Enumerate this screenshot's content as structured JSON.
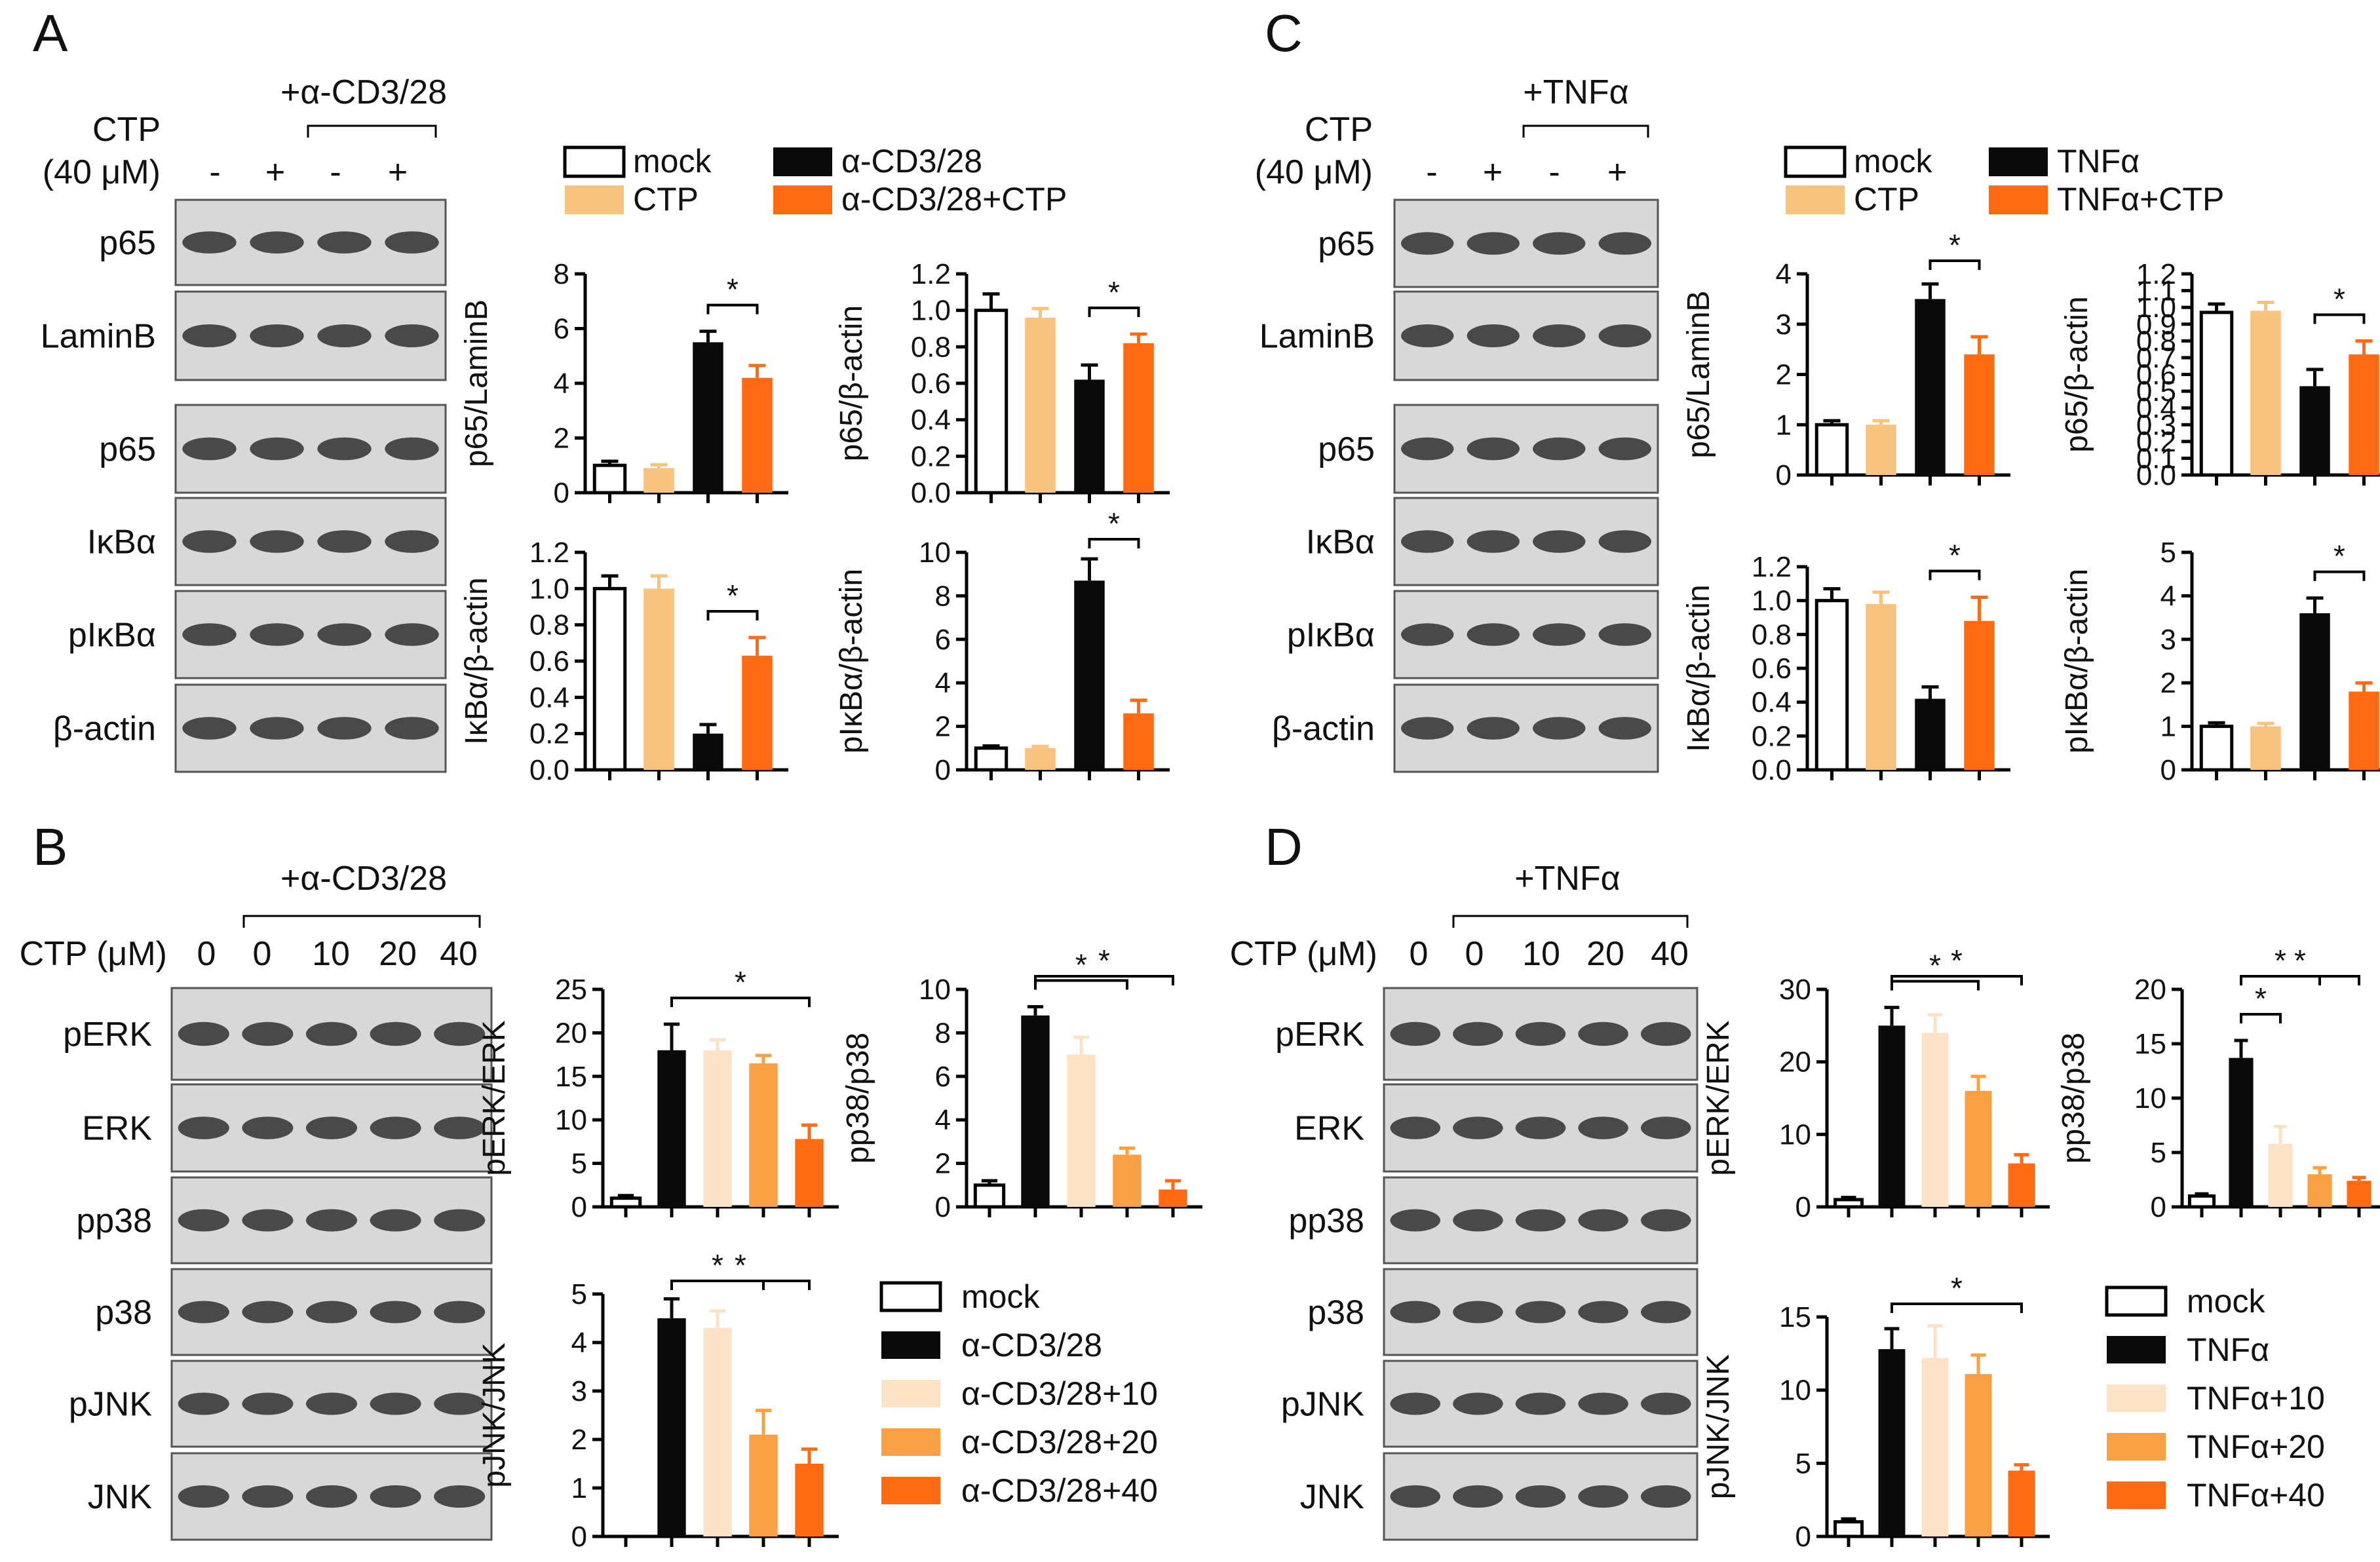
{
  "colors": {
    "mock": "#ffffff",
    "ctp": "#f8c27f",
    "stim": "#0a0a0a",
    "stim_ctp": "#ff6a12",
    "dose10": "#fde3c6",
    "dose20": "#f8a043",
    "dose40": "#ff6a12",
    "blot_bg": "#d8d8d8",
    "band": "#1a1a1a"
  },
  "panels": {
    "A": {
      "letter": "A",
      "treatment": "+α-CD3/28",
      "ctp_label_1": "CTP",
      "ctp_label_2": "(40 μM)",
      "lanes": [
        "-",
        "+",
        "-",
        "+"
      ],
      "blots": [
        "p65",
        "LaminB",
        "p65",
        "IκBα",
        "pIκBα",
        "β-actin"
      ],
      "legend": [
        {
          "label": "mock",
          "color": "#ffffff"
        },
        {
          "label": "α-CD3/28",
          "color": "#0a0a0a"
        },
        {
          "label": "CTP",
          "color": "#f8c27f"
        },
        {
          "label": "α-CD3/28+CTP",
          "color": "#ff6a12"
        }
      ]
    },
    "B": {
      "letter": "B",
      "treatment": "+α-CD3/28",
      "ctp_label": "CTP (μM)",
      "doses": [
        "0",
        "0",
        "10",
        "20",
        "40"
      ],
      "blots": [
        "pERK",
        "ERK",
        "pp38",
        "p38",
        "pJNK",
        "JNK"
      ],
      "legend": [
        {
          "label": "mock",
          "color": "#ffffff"
        },
        {
          "label": "α-CD3/28",
          "color": "#0a0a0a"
        },
        {
          "label": "α-CD3/28+10",
          "color": "#fde3c6"
        },
        {
          "label": "α-CD3/28+20",
          "color": "#f8a043"
        },
        {
          "label": "α-CD3/28+40",
          "color": "#ff6a12"
        }
      ]
    },
    "C": {
      "letter": "C",
      "treatment": "+TNFα",
      "ctp_label_1": "CTP",
      "ctp_label_2": "(40 μM)",
      "lanes": [
        "-",
        "+",
        "-",
        "+"
      ],
      "blots": [
        "p65",
        "LaminB",
        "p65",
        "IκBα",
        "pIκBα",
        "β-actin"
      ],
      "legend": [
        {
          "label": "mock",
          "color": "#ffffff"
        },
        {
          "label": "TNFα",
          "color": "#0a0a0a"
        },
        {
          "label": "CTP",
          "color": "#f8c27f"
        },
        {
          "label": "TNFα+CTP",
          "color": "#ff6a12"
        }
      ]
    },
    "D": {
      "letter": "D",
      "treatment": "+TNFα",
      "ctp_label": "CTP (μM)",
      "doses": [
        "0",
        "0",
        "10",
        "20",
        "40"
      ],
      "blots": [
        "pERK",
        "ERK",
        "pp38",
        "p38",
        "pJNK",
        "JNK"
      ],
      "legend": [
        {
          "label": "mock",
          "color": "#ffffff"
        },
        {
          "label": "TNFα",
          "color": "#0a0a0a"
        },
        {
          "label": "TNFα+10",
          "color": "#fde3c6"
        },
        {
          "label": "TNFα+20",
          "color": "#f8a043"
        },
        {
          "label": "TNFα+40",
          "color": "#ff6a12"
        }
      ]
    }
  },
  "chart_data": [
    {
      "id": "A1",
      "type": "bar",
      "ylabel": "p65/LaminB",
      "ylim": [
        0,
        8
      ],
      "yticks": [
        "0",
        "2",
        "4",
        "6",
        "8"
      ],
      "values": [
        1.0,
        0.9,
        5.5,
        4.2
      ],
      "errors": [
        0.15,
        0.12,
        0.4,
        0.45
      ],
      "colors": [
        "#ffffff",
        "#f8c27f",
        "#0a0a0a",
        "#ff6a12"
      ],
      "sig": [
        {
          "from": 2,
          "to": 3,
          "label": "*"
        }
      ]
    },
    {
      "id": "A2",
      "type": "bar",
      "ylabel": "p65/β-actin",
      "ylim": [
        0,
        1.2
      ],
      "yticks": [
        "0.0",
        "0.2",
        "0.4",
        "0.6",
        "0.8",
        "1.0",
        "1.2"
      ],
      "values": [
        1.0,
        0.96,
        0.62,
        0.82
      ],
      "errors": [
        0.09,
        0.05,
        0.08,
        0.05
      ],
      "colors": [
        "#ffffff",
        "#f8c27f",
        "#0a0a0a",
        "#ff6a12"
      ],
      "sig": [
        {
          "from": 2,
          "to": 3,
          "label": "*"
        }
      ]
    },
    {
      "id": "A3",
      "type": "bar",
      "ylabel": "IκBα/β-actin",
      "ylim": [
        0,
        1.2
      ],
      "yticks": [
        "0.0",
        "0.2",
        "0.4",
        "0.6",
        "0.8",
        "1.0",
        "1.2"
      ],
      "values": [
        1.0,
        1.0,
        0.2,
        0.63
      ],
      "errors": [
        0.07,
        0.07,
        0.05,
        0.1
      ],
      "colors": [
        "#ffffff",
        "#f8c27f",
        "#0a0a0a",
        "#ff6a12"
      ],
      "sig": [
        {
          "from": 2,
          "to": 3,
          "label": "*"
        }
      ]
    },
    {
      "id": "A4",
      "type": "bar",
      "ylabel": "pIκBα/β-actin",
      "ylim": [
        0,
        10
      ],
      "yticks": [
        "0",
        "2",
        "4",
        "6",
        "8",
        "10"
      ],
      "values": [
        1.0,
        1.0,
        8.7,
        2.6
      ],
      "errors": [
        0.1,
        0.08,
        1.0,
        0.6
      ],
      "colors": [
        "#ffffff",
        "#f8c27f",
        "#0a0a0a",
        "#ff6a12"
      ],
      "sig": [
        {
          "from": 2,
          "to": 3,
          "label": "*"
        }
      ]
    },
    {
      "id": "B1",
      "type": "bar",
      "ylabel": "pERK/ERK",
      "ylim": [
        0,
        25
      ],
      "yticks": [
        "0",
        "5",
        "10",
        "15",
        "20",
        "25"
      ],
      "values": [
        1.0,
        18.0,
        18.0,
        16.5,
        7.8
      ],
      "errors": [
        0.3,
        3.0,
        1.2,
        0.9,
        1.6
      ],
      "colors": [
        "#ffffff",
        "#0a0a0a",
        "#fde3c6",
        "#f8a043",
        "#ff6a12"
      ],
      "sig": [
        {
          "from": 1,
          "to": 4,
          "label": "*"
        }
      ]
    },
    {
      "id": "B2",
      "type": "bar",
      "ylabel": "pp38/p38",
      "ylim": [
        0,
        10
      ],
      "yticks": [
        "0",
        "2",
        "4",
        "6",
        "8",
        "10"
      ],
      "values": [
        1.0,
        8.8,
        7.0,
        2.4,
        0.8
      ],
      "errors": [
        0.2,
        0.4,
        0.8,
        0.3,
        0.4
      ],
      "colors": [
        "#ffffff",
        "#0a0a0a",
        "#fde3c6",
        "#f8a043",
        "#ff6a12"
      ],
      "sig": [
        {
          "from": 1,
          "to": 3,
          "label": "*"
        },
        {
          "from": 1,
          "to": 4,
          "label": "*"
        }
      ]
    },
    {
      "id": "B3",
      "type": "bar",
      "ylabel": "pJNK/JNK",
      "ylim": [
        0,
        5
      ],
      "yticks": [
        "0",
        "1",
        "2",
        "3",
        "4",
        "5"
      ],
      "values": [
        0,
        4.5,
        4.3,
        2.1,
        1.5
      ],
      "errors": [
        0,
        0.4,
        0.35,
        0.5,
        0.3
      ],
      "colors": [
        "#ffffff",
        "#0a0a0a",
        "#fde3c6",
        "#f8a043",
        "#ff6a12"
      ],
      "sig": [
        {
          "from": 1,
          "to": 3,
          "label": "*"
        },
        {
          "from": 1,
          "to": 4,
          "label": "*"
        }
      ]
    },
    {
      "id": "C1",
      "type": "bar",
      "ylabel": "p65/LaminB",
      "ylim": [
        0,
        4
      ],
      "yticks": [
        "0",
        "1",
        "2",
        "3",
        "4"
      ],
      "values": [
        1.0,
        1.0,
        3.5,
        2.4
      ],
      "errors": [
        0.08,
        0.08,
        0.3,
        0.35
      ],
      "colors": [
        "#ffffff",
        "#f8c27f",
        "#0a0a0a",
        "#ff6a12"
      ],
      "sig": [
        {
          "from": 2,
          "to": 3,
          "label": "*"
        }
      ]
    },
    {
      "id": "C2",
      "type": "bar",
      "ylabel": "p65/β-actin",
      "ylim": [
        0,
        1.2
      ],
      "yticks": [
        "0.0",
        "0.1",
        "0.2",
        "0.3",
        "0.4",
        "0.5",
        "0.6",
        "0.7",
        "0.8",
        "0.9",
        "1.0",
        "1.1",
        "1.2"
      ],
      "values": [
        0.97,
        0.98,
        0.53,
        0.72
      ],
      "errors": [
        0.05,
        0.05,
        0.1,
        0.08
      ],
      "colors": [
        "#ffffff",
        "#f8c27f",
        "#0a0a0a",
        "#ff6a12"
      ],
      "sig": [
        {
          "from": 2,
          "to": 3,
          "label": "*"
        }
      ]
    },
    {
      "id": "C3",
      "type": "bar",
      "ylabel": "IκBα/β-actin",
      "ylim": [
        0,
        1.2
      ],
      "yticks": [
        "0.0",
        "0.2",
        "0.4",
        "0.6",
        "0.8",
        "1.0",
        "1.2"
      ],
      "values": [
        1.0,
        0.98,
        0.42,
        0.88
      ],
      "errors": [
        0.07,
        0.07,
        0.07,
        0.14
      ],
      "colors": [
        "#ffffff",
        "#f8c27f",
        "#0a0a0a",
        "#ff6a12"
      ],
      "sig": [
        {
          "from": 2,
          "to": 3,
          "label": "*"
        }
      ]
    },
    {
      "id": "C4",
      "type": "bar",
      "ylabel": "pIκBα/β-actin",
      "ylim": [
        0,
        5
      ],
      "yticks": [
        "0",
        "1",
        "2",
        "3",
        "4",
        "5"
      ],
      "values": [
        1.0,
        1.0,
        3.6,
        1.8
      ],
      "errors": [
        0.08,
        0.07,
        0.35,
        0.2
      ],
      "colors": [
        "#ffffff",
        "#f8c27f",
        "#0a0a0a",
        "#ff6a12"
      ],
      "sig": [
        {
          "from": 2,
          "to": 3,
          "label": "*"
        }
      ]
    },
    {
      "id": "D1",
      "type": "bar",
      "ylabel": "pERK/ERK",
      "ylim": [
        0,
        30
      ],
      "yticks": [
        "0",
        "10",
        "20",
        "30"
      ],
      "values": [
        1.0,
        25.0,
        24.0,
        16.0,
        6.0
      ],
      "errors": [
        0.3,
        2.5,
        2.5,
        2.0,
        1.2
      ],
      "colors": [
        "#ffffff",
        "#0a0a0a",
        "#fde3c6",
        "#f8a043",
        "#ff6a12"
      ],
      "sig": [
        {
          "from": 1,
          "to": 3,
          "label": "*"
        },
        {
          "from": 1,
          "to": 4,
          "label": "*"
        }
      ]
    },
    {
      "id": "D2",
      "type": "bar",
      "ylabel": "pp38/p38",
      "ylim": [
        0,
        20
      ],
      "yticks": [
        "0",
        "5",
        "10",
        "15",
        "20"
      ],
      "values": [
        1.0,
        13.7,
        5.8,
        3.0,
        2.4
      ],
      "errors": [
        0.2,
        1.6,
        1.6,
        0.6,
        0.3
      ],
      "colors": [
        "#ffffff",
        "#0a0a0a",
        "#fde3c6",
        "#f8a043",
        "#ff6a12"
      ],
      "sig": [
        {
          "from": 1,
          "to": 2,
          "label": "*"
        },
        {
          "from": 1,
          "to": 3,
          "label": "*"
        },
        {
          "from": 1,
          "to": 4,
          "label": "*"
        }
      ]
    },
    {
      "id": "D3",
      "type": "bar",
      "ylabel": "pJNK/JNK",
      "ylim": [
        0,
        15
      ],
      "yticks": [
        "0",
        "5",
        "10",
        "15"
      ],
      "values": [
        1.0,
        12.8,
        12.2,
        11.1,
        4.5
      ],
      "errors": [
        0.2,
        1.4,
        2.2,
        1.3,
        0.4
      ],
      "colors": [
        "#ffffff",
        "#0a0a0a",
        "#fde3c6",
        "#f8a043",
        "#ff6a12"
      ],
      "sig": [
        {
          "from": 1,
          "to": 4,
          "label": "*"
        }
      ]
    }
  ]
}
